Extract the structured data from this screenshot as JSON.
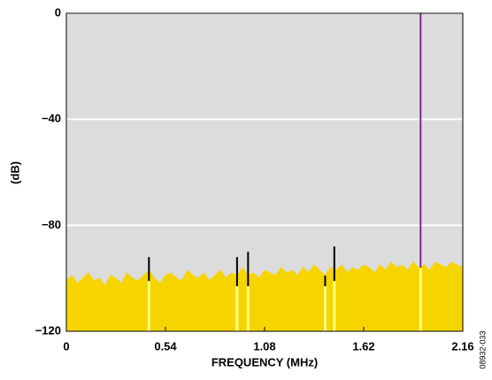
{
  "chart_data": {
    "type": "spectrum",
    "x_label": "FREQUENCY (MHz)",
    "y_label": "(dB)",
    "x": [
      0,
      0.03,
      0.06,
      0.09,
      0.12,
      0.15,
      0.18,
      0.21,
      0.24,
      0.27,
      0.3,
      0.33,
      0.36,
      0.39,
      0.42,
      0.45,
      0.48,
      0.51,
      0.54,
      0.57,
      0.6,
      0.63,
      0.66,
      0.69,
      0.72,
      0.75,
      0.78,
      0.81,
      0.84,
      0.87,
      0.9,
      0.93,
      0.96,
      0.99,
      1.02,
      1.05,
      1.08,
      1.11,
      1.14,
      1.17,
      1.2,
      1.23,
      1.26,
      1.29,
      1.32,
      1.35,
      1.38,
      1.41,
      1.44,
      1.47,
      1.5,
      1.53,
      1.56,
      1.59,
      1.62,
      1.65,
      1.68,
      1.71,
      1.74,
      1.77,
      1.8,
      1.83,
      1.86,
      1.89,
      1.92,
      1.95,
      1.98,
      2.01,
      2.04,
      2.07,
      2.1,
      2.13,
      2.16
    ],
    "values": [
      -101,
      -99,
      -102,
      -100,
      -98,
      -101,
      -100,
      -103,
      -99,
      -100,
      -102,
      -98,
      -100,
      -101,
      -99,
      -97,
      -100,
      -102,
      -99,
      -98,
      -100,
      -101,
      -97,
      -99,
      -100,
      -98,
      -101,
      -99,
      -97,
      -100,
      -98,
      -99,
      -96,
      -99,
      -98,
      -100,
      -97,
      -98,
      -99,
      -96,
      -98,
      -97,
      -99,
      -96,
      -98,
      -95,
      -97,
      -99,
      -96,
      -97,
      -95,
      -98,
      -96,
      -97,
      -95,
      -96,
      -98,
      -95,
      -97,
      -94,
      -96,
      -95,
      -97,
      -94,
      -96,
      -95,
      -97,
      -94,
      -95,
      -96,
      -94,
      -95,
      -96
    ],
    "color": "#f5d400",
    "spurs": {
      "x": [
        0.45,
        0.93,
        0.99,
        1.41,
        1.46
      ],
      "values": [
        -92,
        -92,
        -90,
        -99,
        -88
      ],
      "color": "#000000"
    },
    "tone": {
      "x": 1.93,
      "value": 0,
      "color": "#7a2a8c"
    },
    "xlim": [
      0,
      2.16
    ],
    "xticks": [
      0,
      0.54,
      1.08,
      1.62,
      2.16
    ],
    "ylim": [
      -120,
      0
    ],
    "yticks": [
      {
        "value": -120,
        "label": "−120"
      },
      {
        "value": -80,
        "label": "−80"
      },
      {
        "value": -40,
        "label": "−40"
      },
      0
    ],
    "grid": true
  },
  "figure_id": "08932-033"
}
